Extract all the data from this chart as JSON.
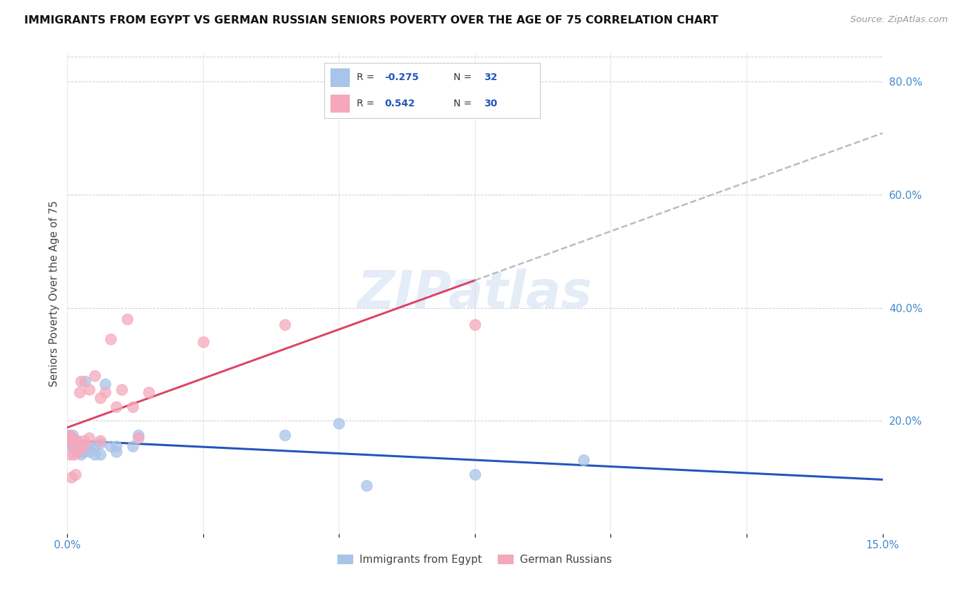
{
  "title": "IMMIGRANTS FROM EGYPT VS GERMAN RUSSIAN SENIORS POVERTY OVER THE AGE OF 75 CORRELATION CHART",
  "source": "Source: ZipAtlas.com",
  "ylabel": "Seniors Poverty Over the Age of 75",
  "color_egypt": "#a8c4e8",
  "color_german": "#f5a8bc",
  "color_trendline_egypt": "#2255bb",
  "color_trendline_german": "#dd4466",
  "color_trendline_extrapolate": "#bbbbbb",
  "watermark": "ZIPatlas",
  "egypt_x": [
    0.0003,
    0.0005,
    0.0008,
    0.001,
    0.0012,
    0.0013,
    0.0015,
    0.0017,
    0.002,
    0.002,
    0.0022,
    0.0025,
    0.003,
    0.003,
    0.0032,
    0.004,
    0.004,
    0.005,
    0.005,
    0.006,
    0.006,
    0.007,
    0.008,
    0.009,
    0.009,
    0.012,
    0.013,
    0.04,
    0.05,
    0.055,
    0.075,
    0.095
  ],
  "egypt_y": [
    0.175,
    0.16,
    0.155,
    0.175,
    0.155,
    0.16,
    0.155,
    0.165,
    0.15,
    0.145,
    0.145,
    0.14,
    0.155,
    0.145,
    0.27,
    0.155,
    0.145,
    0.155,
    0.14,
    0.16,
    0.14,
    0.265,
    0.155,
    0.145,
    0.155,
    0.155,
    0.175,
    0.175,
    0.195,
    0.085,
    0.105,
    0.13
  ],
  "german_x": [
    0.0003,
    0.0005,
    0.0007,
    0.001,
    0.001,
    0.0012,
    0.0015,
    0.0017,
    0.002,
    0.002,
    0.0022,
    0.0025,
    0.003,
    0.003,
    0.004,
    0.004,
    0.005,
    0.006,
    0.006,
    0.007,
    0.008,
    0.009,
    0.01,
    0.011,
    0.012,
    0.013,
    0.015,
    0.025,
    0.04,
    0.075
  ],
  "german_y": [
    0.175,
    0.14,
    0.1,
    0.16,
    0.17,
    0.14,
    0.105,
    0.165,
    0.155,
    0.145,
    0.25,
    0.27,
    0.155,
    0.165,
    0.255,
    0.17,
    0.28,
    0.165,
    0.24,
    0.25,
    0.345,
    0.225,
    0.255,
    0.38,
    0.225,
    0.17,
    0.25,
    0.34,
    0.37,
    0.37
  ],
  "xlim": [
    0.0,
    0.15
  ],
  "ylim": [
    0.0,
    0.85
  ],
  "yticks": [
    0.0,
    0.2,
    0.4,
    0.6,
    0.8
  ],
  "yticklabels": [
    "",
    "20.0%",
    "40.0%",
    "60.0%",
    "80.0%"
  ]
}
